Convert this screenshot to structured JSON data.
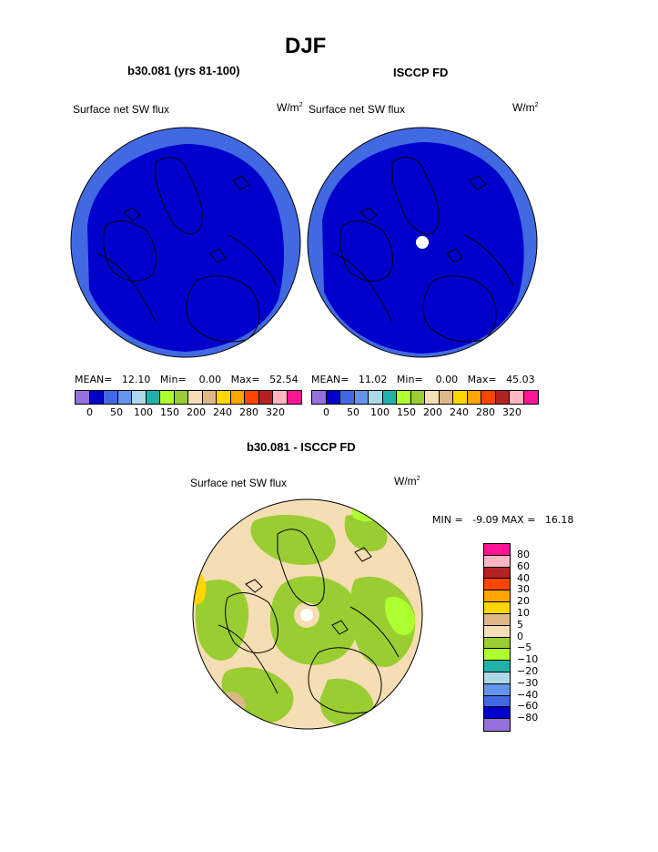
{
  "page_title": "DJF",
  "panels": [
    {
      "title": "b30.081 (yrs 81-100)",
      "variable": "Surface net SW flux",
      "unit": "W/m",
      "unit_sup": "2",
      "stats": {
        "mean_label": "MEAN=",
        "mean": "12.10",
        "min_label": "Min=",
        "min": "0.00",
        "max_label": "Max=",
        "max": "52.54"
      }
    },
    {
      "title": "ISCCP FD",
      "variable": "Surface net SW flux",
      "unit": "W/m",
      "unit_sup": "2",
      "stats": {
        "mean_label": "MEAN=",
        "mean": "11.02",
        "min_label": "Min=",
        "min": "0.00",
        "max_label": "Max=",
        "max": "45.03"
      }
    }
  ],
  "colorbar_abs": {
    "colors": [
      "#9370db",
      "#0000cd",
      "#4169e1",
      "#6495ed",
      "#add8e6",
      "#20b2aa",
      "#adff2f",
      "#9acd32",
      "#f5deb3",
      "#deb887",
      "#ffd700",
      "#ffa500",
      "#ff4500",
      "#b22222",
      "#ffb6c1",
      "#ff1493"
    ],
    "tick_labels": [
      "0",
      "50",
      "100",
      "150",
      "200",
      "240",
      "280",
      "320"
    ]
  },
  "diff_panel": {
    "title": "b30.081 - ISCCP FD",
    "variable": "Surface net SW flux",
    "unit": "W/m",
    "unit_sup": "2",
    "min_label": "MIN =",
    "min": "-9.09",
    "max_label": "MAX =",
    "max": "16.18"
  },
  "colorbar_diff": {
    "colors": [
      "#ff1493",
      "#ffb6c1",
      "#b22222",
      "#ff4500",
      "#ffa500",
      "#ffd700",
      "#deb887",
      "#f5deb3",
      "#9acd32",
      "#adff2f",
      "#20b2aa",
      "#add8e6",
      "#6495ed",
      "#4169e1",
      "#0000cd",
      "#9370db"
    ],
    "tick_labels": [
      "80",
      "60",
      "40",
      "30",
      "20",
      "10",
      "5",
      "0",
      "−5",
      "−10",
      "−20",
      "−30",
      "−40",
      "−60",
      "−80"
    ]
  },
  "chart_data": [
    {
      "type": "heatmap",
      "title": "b30.081 (yrs 81-100)",
      "subtitle": "Surface net SW flux",
      "units": "W/m2",
      "projection": "polar stereographic (North Pole)",
      "mean": 12.1,
      "min": 0.0,
      "max": 52.54,
      "levels": [
        0,
        25,
        50,
        75,
        100,
        125,
        150,
        175,
        200,
        220,
        240,
        260,
        280,
        300,
        320
      ],
      "colors": {
        "interior": "#0000cd",
        "outer_ring": "#4169e1"
      }
    },
    {
      "type": "heatmap",
      "title": "ISCCP FD",
      "subtitle": "Surface net SW flux",
      "units": "W/m2",
      "projection": "polar stereographic (North Pole)",
      "mean": 11.02,
      "min": 0.0,
      "max": 45.03,
      "levels": [
        0,
        25,
        50,
        75,
        100,
        125,
        150,
        175,
        200,
        220,
        240,
        260,
        280,
        300,
        320
      ],
      "colors": {
        "interior": "#0000cd",
        "outer_ring": "#4169e1",
        "pole_missing": "#ffffff"
      }
    },
    {
      "type": "heatmap",
      "title": "b30.081 - ISCCP FD",
      "subtitle": "Surface net SW flux",
      "units": "W/m2",
      "projection": "polar stereographic (North Pole)",
      "min": -9.09,
      "max": 16.18,
      "levels": [
        -80,
        -60,
        -40,
        -30,
        -20,
        -10,
        -5,
        0,
        5,
        10,
        20,
        30,
        40,
        60,
        80
      ]
    }
  ]
}
